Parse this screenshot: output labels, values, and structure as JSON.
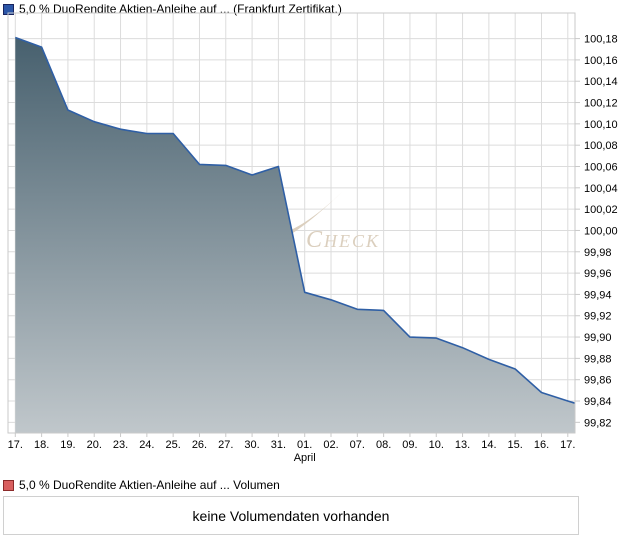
{
  "chart_data": {
    "type": "area",
    "title": "5,0 % DuoRendite Aktien-Anleihe auf ... (Frankfurt Zertifikat.)",
    "categories": [
      "17.",
      "18.",
      "19.",
      "20.",
      "23.",
      "24.",
      "25.",
      "26.",
      "27.",
      "30.",
      "31.",
      "01.",
      "02.",
      "07.",
      "08.",
      "09.",
      "10.",
      "13.",
      "14.",
      "15.",
      "16.",
      "17."
    ],
    "values": [
      100.181,
      100.172,
      100.113,
      100.102,
      100.095,
      100.091,
      100.091,
      100.062,
      100.061,
      100.052,
      100.06,
      99.942,
      99.935,
      99.926,
      99.925,
      99.9,
      99.899,
      99.89,
      99.879,
      99.87,
      99.848,
      99.84
    ],
    "right_edge_value": 99.838,
    "month_label": {
      "index": 11,
      "label": "April"
    },
    "y_ticks": [
      100.18,
      100.16,
      100.14,
      100.12,
      100.1,
      100.08,
      100.06,
      100.04,
      100.02,
      100.0,
      99.98,
      99.96,
      99.94,
      99.92,
      99.9,
      99.88,
      99.86,
      99.84,
      99.82
    ],
    "ylim": [
      99.81,
      100.204
    ],
    "grid": true,
    "legend_position": "top-left",
    "watermark": "CHECK"
  },
  "volume": {
    "legend_label": "5,0 % DuoRendite Aktien-Anleihe auf ... Volumen",
    "message": "keine Volumendaten vorhanden"
  },
  "colors": {
    "line": "#2f5fa5",
    "area_top": "#47606e",
    "area_bottom": "#c0c7cb",
    "grid": "#dcdcdc",
    "border": "#c9c9c9",
    "watermark": "#dbcfbe",
    "price_marker": "#2b56a7",
    "volume_marker": "#d95f5f",
    "text": "#000000"
  }
}
